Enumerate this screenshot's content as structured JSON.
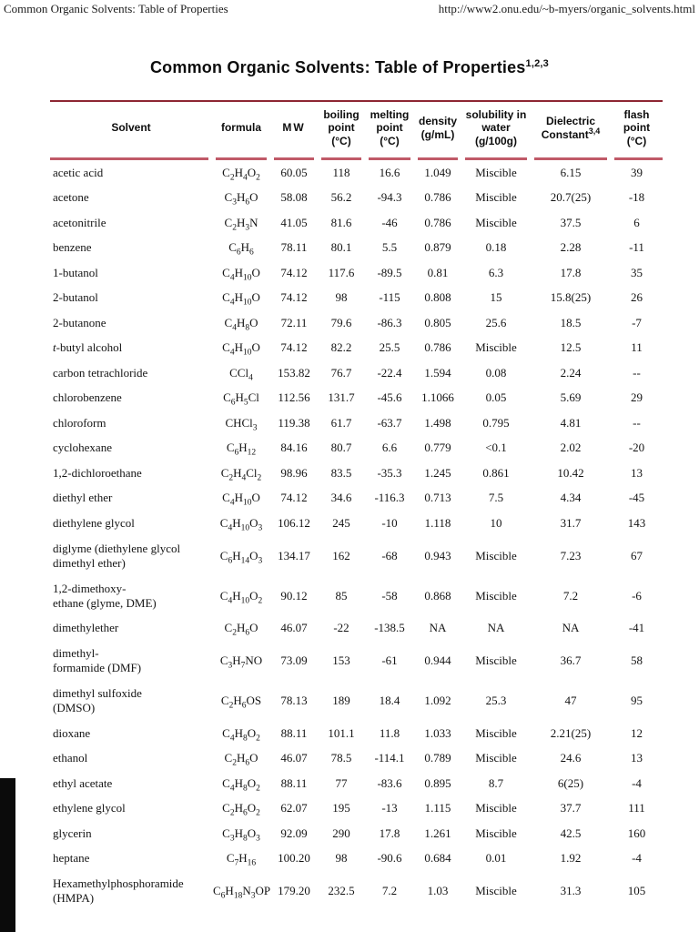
{
  "print_header": {
    "left": "Common Organic Solvents: Table of Properties",
    "right": "http://www2.onu.edu/~b-myers/organic_solvents.html"
  },
  "title": {
    "text": "Common Organic Solvents: Table of Properties",
    "superscript": "1,2,3"
  },
  "colors": {
    "top_rule": "#8e2633",
    "header_underline": "#c05a68",
    "text": "#111111",
    "background": "#ffffff"
  },
  "table": {
    "columns": [
      {
        "key": "solvent",
        "label": "Solvent",
        "sup": "",
        "unit": ""
      },
      {
        "key": "formula",
        "label": "formula",
        "sup": "",
        "unit": ""
      },
      {
        "key": "mw",
        "label": "MW",
        "sup": "",
        "unit": ""
      },
      {
        "key": "bp",
        "label": "boiling point",
        "sup": "",
        "unit": "(°C)"
      },
      {
        "key": "mp",
        "label": "melting point",
        "sup": "",
        "unit": "(°C)"
      },
      {
        "key": "density",
        "label": "density",
        "sup": "",
        "unit": "(g/mL)"
      },
      {
        "key": "solubility",
        "label": "solubility in water",
        "sup": "",
        "unit": "(g/100g)"
      },
      {
        "key": "dielectric",
        "label": "Dielectric Constant",
        "sup": "3,4",
        "unit": ""
      },
      {
        "key": "flash",
        "label": "flash point",
        "sup": "",
        "unit": "(°C)"
      }
    ],
    "rows": [
      {
        "solvent": "acetic acid",
        "formula": "C2H4O2",
        "mw": "60.05",
        "bp": "118",
        "mp": "16.6",
        "density": "1.049",
        "solubility": "Miscible",
        "dielectric": "6.15",
        "flash": "39"
      },
      {
        "solvent": "acetone",
        "formula": "C3H6O",
        "mw": "58.08",
        "bp": "56.2",
        "mp": "-94.3",
        "density": "0.786",
        "solubility": "Miscible",
        "dielectric": "20.7(25)",
        "flash": "-18"
      },
      {
        "solvent": "acetonitrile",
        "formula": "C2H3N",
        "mw": "41.05",
        "bp": "81.6",
        "mp": "-46",
        "density": "0.786",
        "solubility": "Miscible",
        "dielectric": "37.5",
        "flash": "6"
      },
      {
        "solvent": "benzene",
        "formula": "C6H6",
        "mw": "78.11",
        "bp": "80.1",
        "mp": "5.5",
        "density": "0.879",
        "solubility": "0.18",
        "dielectric": "2.28",
        "flash": "-11"
      },
      {
        "solvent": "1-butanol",
        "formula": "C4H10O",
        "mw": "74.12",
        "bp": "117.6",
        "mp": "-89.5",
        "density": "0.81",
        "solubility": "6.3",
        "dielectric": "17.8",
        "flash": "35"
      },
      {
        "solvent": "2-butanol",
        "formula": "C4H10O",
        "mw": "74.12",
        "bp": "98",
        "mp": "-115",
        "density": "0.808",
        "solubility": "15",
        "dielectric": "15.8(25)",
        "flash": "26"
      },
      {
        "solvent": "2-butanone",
        "formula": "C4H8O",
        "mw": "72.11",
        "bp": "79.6",
        "mp": "-86.3",
        "density": "0.805",
        "solubility": "25.6",
        "dielectric": "18.5",
        "flash": "-7"
      },
      {
        "solvent": "*t*-butyl alcohol",
        "formula": "C4H10O",
        "mw": "74.12",
        "bp": "82.2",
        "mp": "25.5",
        "density": "0.786",
        "solubility": "Miscible",
        "dielectric": "12.5",
        "flash": "11"
      },
      {
        "solvent": "carbon tetrachloride",
        "formula": "CCl4",
        "mw": "153.82",
        "bp": "76.7",
        "mp": "-22.4",
        "density": "1.594",
        "solubility": "0.08",
        "dielectric": "2.24",
        "flash": "--"
      },
      {
        "solvent": "chlorobenzene",
        "formula": "C6H5Cl",
        "mw": "112.56",
        "bp": "131.7",
        "mp": "-45.6",
        "density": "1.1066",
        "solubility": "0.05",
        "dielectric": "5.69",
        "flash": "29"
      },
      {
        "solvent": "chloroform",
        "formula": "CHCl3",
        "mw": "119.38",
        "bp": "61.7",
        "mp": "-63.7",
        "density": "1.498",
        "solubility": "0.795",
        "dielectric": "4.81",
        "flash": "--"
      },
      {
        "solvent": "cyclohexane",
        "formula": "C6H12",
        "mw": "84.16",
        "bp": "80.7",
        "mp": "6.6",
        "density": "0.779",
        "solubility": "<0.1",
        "dielectric": "2.02",
        "flash": "-20"
      },
      {
        "solvent": "1,2-dichloroethane",
        "formula": "C2H4Cl2",
        "mw": "98.96",
        "bp": "83.5",
        "mp": "-35.3",
        "density": "1.245",
        "solubility": "0.861",
        "dielectric": "10.42",
        "flash": "13"
      },
      {
        "solvent": "diethyl ether",
        "formula": "C4H10O",
        "mw": "74.12",
        "bp": "34.6",
        "mp": "-116.3",
        "density": "0.713",
        "solubility": "7.5",
        "dielectric": "4.34",
        "flash": "-45"
      },
      {
        "solvent": "diethylene glycol",
        "formula": "C4H10O3",
        "mw": "106.12",
        "bp": "245",
        "mp": "-10",
        "density": "1.118",
        "solubility": "10",
        "dielectric": "31.7",
        "flash": "143"
      },
      {
        "solvent": "diglyme (diethylene glycol\ndimethyl ether)",
        "formula": "C6H14O3",
        "mw": "134.17",
        "bp": "162",
        "mp": "-68",
        "density": "0.943",
        "solubility": "Miscible",
        "dielectric": "7.23",
        "flash": "67"
      },
      {
        "solvent": "1,2-dimethoxy-\nethane (glyme, DME)",
        "formula": "C4H10O2",
        "mw": "90.12",
        "bp": "85",
        "mp": "-58",
        "density": "0.868",
        "solubility": "Miscible",
        "dielectric": "7.2",
        "flash": "-6"
      },
      {
        "solvent": "dimethylether",
        "formula": "C2H6O",
        "mw": "46.07",
        "bp": "-22",
        "mp": "-138.5",
        "density": "NA",
        "solubility": "NA",
        "dielectric": "NA",
        "flash": "-41"
      },
      {
        "solvent": "dimethyl-\nformamide (DMF)",
        "formula": "C3H7NO",
        "mw": "73.09",
        "bp": "153",
        "mp": "-61",
        "density": "0.944",
        "solubility": "Miscible",
        "dielectric": "36.7",
        "flash": "58"
      },
      {
        "solvent": "dimethyl sulfoxide\n(DMSO)",
        "formula": "C2H6OS",
        "mw": "78.13",
        "bp": "189",
        "mp": "18.4",
        "density": "1.092",
        "solubility": "25.3",
        "dielectric": "47",
        "flash": "95"
      },
      {
        "solvent": "dioxane",
        "formula": "C4H8O2",
        "mw": "88.11",
        "bp": "101.1",
        "mp": "11.8",
        "density": "1.033",
        "solubility": "Miscible",
        "dielectric": "2.21(25)",
        "flash": "12"
      },
      {
        "solvent": "ethanol",
        "formula": "C2H6O",
        "mw": "46.07",
        "bp": "78.5",
        "mp": "-114.1",
        "density": "0.789",
        "solubility": "Miscible",
        "dielectric": "24.6",
        "flash": "13"
      },
      {
        "solvent": "ethyl acetate",
        "formula": "C4H8O2",
        "mw": "88.11",
        "bp": "77",
        "mp": "-83.6",
        "density": "0.895",
        "solubility": "8.7",
        "dielectric": "6(25)",
        "flash": "-4"
      },
      {
        "solvent": "ethylene glycol",
        "formula": "C2H6O2",
        "mw": "62.07",
        "bp": "195",
        "mp": "-13",
        "density": "1.115",
        "solubility": "Miscible",
        "dielectric": "37.7",
        "flash": "111"
      },
      {
        "solvent": "glycerin",
        "formula": "C3H8O3",
        "mw": "92.09",
        "bp": "290",
        "mp": "17.8",
        "density": "1.261",
        "solubility": "Miscible",
        "dielectric": "42.5",
        "flash": "160"
      },
      {
        "solvent": "heptane",
        "formula": "C7H16",
        "mw": "100.20",
        "bp": "98",
        "mp": "-90.6",
        "density": "0.684",
        "solubility": "0.01",
        "dielectric": "1.92",
        "flash": "-4"
      },
      {
        "solvent": "Hexamethylphosphoramide\n(HMPA)",
        "formula": "C6H18N3OP",
        "mw": "179.20",
        "bp": "232.5",
        "mp": "7.2",
        "density": "1.03",
        "solubility": "Miscible",
        "dielectric": "31.3",
        "flash": "105"
      }
    ]
  }
}
